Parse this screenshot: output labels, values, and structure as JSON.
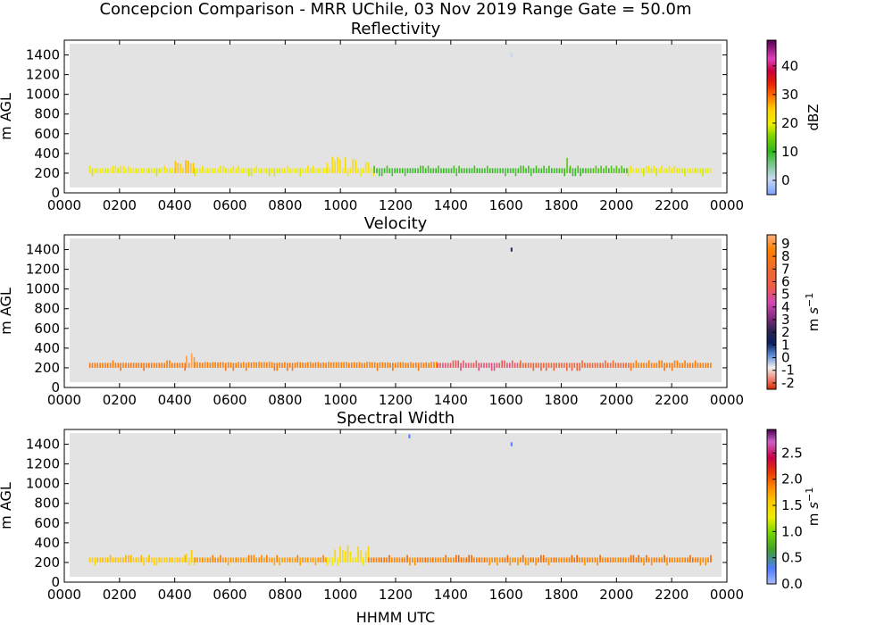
{
  "figure": {
    "suptitle": "Concepcion Comparison - MRR UChile, 03 Nov 2019 Range Gate = 50.0m",
    "xlabel": "HHMM UTC"
  },
  "chart_data": [
    {
      "type": "heatmap",
      "title": "Reflectivity",
      "xlabel": "",
      "ylabel": "m AGL",
      "xticks": [
        "0000",
        "0200",
        "0400",
        "0600",
        "0800",
        "1000",
        "1200",
        "1400",
        "1600",
        "1800",
        "2000",
        "2200",
        "0000"
      ],
      "yticks": [
        0,
        200,
        400,
        600,
        800,
        1000,
        1200,
        1400
      ],
      "xlim_hours": [
        0,
        24
      ],
      "ylim": [
        0,
        1550
      ],
      "colorbar": {
        "label": "dBZ",
        "range": [
          -5,
          49
        ],
        "ticks": [
          0,
          10,
          20,
          30,
          40
        ],
        "tick_labels": [
          "0",
          "10",
          "20",
          "30",
          "40"
        ]
      },
      "observed_layer": {
        "x_start_hours": 0.9,
        "x_end_hours": 23.4,
        "y_range": [
          200,
          250
        ]
      },
      "segments": [
        {
          "t0": 0.9,
          "t1": 4.0,
          "value": 20
        },
        {
          "t0": 4.0,
          "t1": 4.7,
          "value": 25,
          "top": 350
        },
        {
          "t0": 4.7,
          "t1": 9.5,
          "value": 20
        },
        {
          "t0": 9.5,
          "t1": 11.2,
          "value": 22,
          "top": 380
        },
        {
          "t0": 11.2,
          "t1": 18.0,
          "value": 10
        },
        {
          "t0": 18.0,
          "t1": 18.3,
          "value": 12,
          "top": 380
        },
        {
          "t0": 18.3,
          "t1": 20.4,
          "value": 11
        },
        {
          "t0": 20.4,
          "t1": 23.4,
          "value": 20
        }
      ],
      "isolated_returns": [
        {
          "t": 16.2,
          "alt": 1380,
          "value": 0
        }
      ]
    },
    {
      "type": "heatmap",
      "title": "Velocity",
      "xlabel": "",
      "ylabel": "m AGL",
      "xticks": [
        "0000",
        "0200",
        "0400",
        "0600",
        "0800",
        "1000",
        "1200",
        "1400",
        "1600",
        "1800",
        "2000",
        "2200",
        "0000"
      ],
      "yticks": [
        0,
        200,
        400,
        600,
        800,
        1000,
        1200,
        1400
      ],
      "xlim_hours": [
        0,
        24
      ],
      "ylim": [
        0,
        1550
      ],
      "colorbar": {
        "label": "m s$^{-1}$",
        "range": [
          -2.5,
          9.7
        ],
        "ticks": [
          -2,
          -1,
          0,
          1,
          2,
          3,
          4,
          5,
          6,
          7,
          8,
          9
        ],
        "tick_labels": [
          "-2",
          "-1",
          "0",
          "1",
          "2",
          "3",
          "4",
          "5",
          "6",
          "7",
          "8",
          "9"
        ]
      },
      "observed_layer": {
        "x_start_hours": 0.9,
        "x_end_hours": 23.4,
        "y_range": [
          200,
          250
        ]
      },
      "segments": [
        {
          "t0": 0.9,
          "t1": 4.4,
          "value": 8.0
        },
        {
          "t0": 4.4,
          "t1": 4.7,
          "value": 9.0,
          "top": 350
        },
        {
          "t0": 4.7,
          "t1": 13.5,
          "value": 8.2,
          "top": 260
        },
        {
          "t0": 13.5,
          "t1": 16.5,
          "value": 5.2
        },
        {
          "t0": 16.5,
          "t1": 20.5,
          "value": 6.5
        },
        {
          "t0": 20.5,
          "t1": 23.4,
          "value": 8.0
        }
      ],
      "isolated_returns": [
        {
          "t": 16.2,
          "alt": 1380,
          "value": 2
        }
      ]
    },
    {
      "type": "heatmap",
      "title": "Spectral Width",
      "xlabel": "HHMM UTC",
      "ylabel": "m AGL",
      "xticks": [
        "0000",
        "0200",
        "0400",
        "0600",
        "0800",
        "1000",
        "1200",
        "1400",
        "1600",
        "1800",
        "2000",
        "2200",
        "0000"
      ],
      "yticks": [
        0,
        200,
        400,
        600,
        800,
        1000,
        1200,
        1400
      ],
      "xlim_hours": [
        0,
        24
      ],
      "ylim": [
        0,
        1550
      ],
      "colorbar": {
        "label": "m s$^{-1}$",
        "range": [
          0,
          2.95
        ],
        "ticks": [
          0.0,
          0.5,
          1.0,
          1.5,
          2.0,
          2.5
        ],
        "tick_labels": [
          "0.0",
          "0.5",
          "1.0",
          "1.5",
          "2.0",
          "2.5"
        ]
      },
      "observed_layer": {
        "x_start_hours": 0.9,
        "x_end_hours": 23.4,
        "y_range": [
          200,
          250
        ]
      },
      "segments": [
        {
          "t0": 0.9,
          "t1": 4.4,
          "value": 1.6
        },
        {
          "t0": 4.4,
          "t1": 4.7,
          "value": 1.5,
          "top": 340
        },
        {
          "t0": 4.7,
          "t1": 9.5,
          "value": 1.8
        },
        {
          "t0": 9.5,
          "t1": 11.0,
          "value": 1.4,
          "top": 380
        },
        {
          "t0": 11.0,
          "t1": 23.4,
          "value": 1.9
        }
      ],
      "isolated_returns": [
        {
          "t": 12.5,
          "alt": 1460,
          "value": 0.3
        },
        {
          "t": 16.2,
          "alt": 1380,
          "value": 0.3
        }
      ]
    }
  ]
}
